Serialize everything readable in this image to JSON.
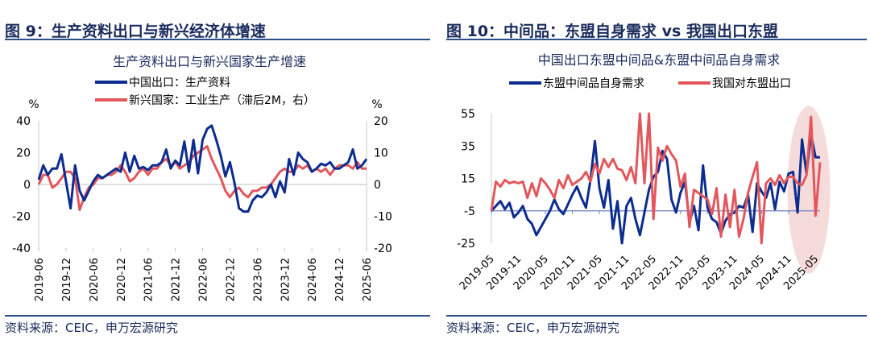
{
  "colors": {
    "navy": "#0d2c8f",
    "red": "#e3575c",
    "title": "#1a2b5c",
    "rule": "#2d4f88",
    "highlight": "#f3cfcf"
  },
  "figures": [
    {
      "fig_title": "图 9：生产资料出口与新兴经济体增速",
      "source": "资料来源：CEIC，申万宏源研究",
      "chart_data": {
        "type": "line",
        "title": "生产资料出口与新兴国家生产增速",
        "left_unit": "%",
        "right_unit": "%",
        "ylim_left": [
          -40,
          40
        ],
        "ylim_right": [
          -20,
          20
        ],
        "yticks_left": [
          "40",
          "20",
          "0",
          "-20",
          "-40"
        ],
        "yticks_right": [
          "20",
          "10",
          "0",
          "-10",
          "-20"
        ],
        "x_ticks": [
          "2019-06",
          "2019-12",
          "2020-06",
          "2020-12",
          "2021-06",
          "2021-12",
          "2022-06",
          "2022-12",
          "2023-06",
          "2023-12",
          "2024-06",
          "2024-12",
          "2025-06"
        ],
        "x_months": [
          "2019-06",
          "2019-07",
          "2019-08",
          "2019-09",
          "2019-10",
          "2019-11",
          "2019-12",
          "2020-01",
          "2020-02",
          "2020-03",
          "2020-04",
          "2020-05",
          "2020-06",
          "2020-07",
          "2020-08",
          "2020-09",
          "2020-10",
          "2020-11",
          "2020-12",
          "2021-01",
          "2021-02",
          "2021-03",
          "2021-04",
          "2021-05",
          "2021-06",
          "2021-07",
          "2021-08",
          "2021-09",
          "2021-10",
          "2021-11",
          "2021-12",
          "2022-01",
          "2022-02",
          "2022-03",
          "2022-04",
          "2022-05",
          "2022-06",
          "2022-07",
          "2022-08",
          "2022-09",
          "2022-10",
          "2022-11",
          "2022-12",
          "2023-01",
          "2023-02",
          "2023-03",
          "2023-04",
          "2023-05",
          "2023-06",
          "2023-07",
          "2023-08",
          "2023-09",
          "2023-10",
          "2023-11",
          "2023-12",
          "2024-01",
          "2024-02",
          "2024-03",
          "2024-04",
          "2024-05",
          "2024-06",
          "2024-07",
          "2024-08",
          "2024-09",
          "2024-10",
          "2024-11",
          "2024-12",
          "2025-01",
          "2025-02",
          "2025-03",
          "2025-04",
          "2025-05",
          "2025-06"
        ],
        "series": [
          {
            "name": "中国出口：生产资料",
            "axis": "left",
            "color": "#0d2c8f",
            "values": [
              3,
              12,
              6,
              10,
              10,
              19,
              2,
              -15,
              12,
              -4,
              -10,
              -4,
              2,
              6,
              4,
              6,
              8,
              10,
              8,
              20,
              8,
              18,
              10,
              11,
              9,
              12,
              12,
              14,
              22,
              10,
              15,
              12,
              27,
              8,
              28,
              7,
              28,
              35,
              37,
              28,
              18,
              5,
              14,
              1,
              -15,
              -17,
              -17,
              -10,
              -7,
              -8,
              -5,
              0,
              -8,
              2,
              -5,
              16,
              6,
              20,
              16,
              14,
              8,
              10,
              13,
              12,
              14,
              10,
              10,
              12,
              14,
              22,
              10,
              12,
              16
            ]
          },
          {
            "name": "新兴国家：工业生产（滞后2M，右）",
            "axis": "right",
            "color": "#e3575c",
            "values": [
              0,
              3,
              3,
              -1,
              0,
              2,
              4,
              4,
              2,
              -8,
              -4,
              -1,
              0,
              2,
              2,
              3,
              3,
              4,
              6,
              4,
              1,
              2,
              4,
              5,
              3,
              5,
              5,
              7,
              8,
              6,
              7,
              5,
              6,
              7,
              9,
              10,
              11,
              12,
              8,
              5,
              2,
              -2,
              -4,
              -2,
              -1,
              -3,
              -4,
              -2,
              -2,
              -1,
              -1,
              0,
              2,
              4,
              5,
              4,
              4,
              6,
              5,
              6,
              4,
              5,
              4,
              5,
              3,
              5,
              6,
              6,
              6,
              5,
              7,
              5,
              5
            ]
          }
        ]
      }
    },
    {
      "fig_title": "图 10：中间品：东盟自身需求 vs 我国出口东盟",
      "source": "资料来源：CEIC，申万宏源研究",
      "chart_data": {
        "type": "line",
        "title": "中国出口东盟中间品&东盟中间品自身需求",
        "ylim": [
          -25,
          55
        ],
        "yticks": [
          "55",
          "35",
          "15",
          "-5",
          "-25"
        ],
        "x_ticks": [
          "2019-05",
          "2019-11",
          "2020-05",
          "2020-11",
          "2021-05",
          "2021-11",
          "2022-05",
          "2022-11",
          "2023-05",
          "2023-11",
          "2024-05",
          "2024-11",
          "2025-05"
        ],
        "x_months": [
          "2019-05",
          "2019-06",
          "2019-07",
          "2019-08",
          "2019-09",
          "2019-10",
          "2019-11",
          "2019-12",
          "2020-01",
          "2020-02",
          "2020-03",
          "2020-04",
          "2020-05",
          "2020-06",
          "2020-07",
          "2020-08",
          "2020-09",
          "2020-10",
          "2020-11",
          "2020-12",
          "2021-01",
          "2021-02",
          "2021-03",
          "2021-04",
          "2021-05",
          "2021-06",
          "2021-07",
          "2021-08",
          "2021-09",
          "2021-10",
          "2021-11",
          "2021-12",
          "2022-01",
          "2022-02",
          "2022-03",
          "2022-04",
          "2022-05",
          "2022-06",
          "2022-07",
          "2022-08",
          "2022-09",
          "2022-10",
          "2022-11",
          "2022-12",
          "2023-01",
          "2023-02",
          "2023-03",
          "2023-04",
          "2023-05",
          "2023-06",
          "2023-07",
          "2023-08",
          "2023-09",
          "2023-10",
          "2023-11",
          "2023-12",
          "2024-01",
          "2024-02",
          "2024-03",
          "2024-04",
          "2024-05",
          "2024-06",
          "2024-07",
          "2024-08",
          "2024-09",
          "2024-10",
          "2024-11",
          "2024-12",
          "2025-01",
          "2025-02",
          "2025-03",
          "2025-04",
          "2025-05",
          "2025-06"
        ],
        "series": [
          {
            "name": "东盟中间品自身需求",
            "color": "#0d2c8f",
            "values": [
              -5,
              -2,
              1,
              -4,
              0,
              -9,
              -6,
              -2,
              -10,
              -13,
              -20,
              -15,
              -10,
              -5,
              2,
              -4,
              -7,
              -1,
              5,
              10,
              3,
              -3,
              14,
              38,
              9,
              -3,
              14,
              -16,
              1,
              -27,
              -2,
              3,
              -10,
              -20,
              -6,
              8,
              16,
              19,
              32,
              27,
              2,
              -6,
              6,
              13,
              -12,
              -2,
              -17,
              23,
              -3,
              -10,
              -12,
              -19,
              -11,
              -7,
              -6,
              -2,
              -3,
              5,
              -18,
              12,
              7,
              3,
              12,
              -4,
              13,
              7,
              18,
              19,
              -6,
              39,
              18,
              42,
              28,
              28
            ]
          },
          {
            "name": "我国对东盟出口",
            "color": "#e3575c",
            "values": [
              -5,
              13,
              10,
              14,
              12,
              13,
              12,
              13,
              3,
              12,
              4,
              15,
              12,
              8,
              3,
              14,
              9,
              17,
              11,
              13,
              15,
              19,
              13,
              24,
              18,
              27,
              22,
              27,
              21,
              20,
              14,
              22,
              12,
              56,
              12,
              56,
              -10,
              34,
              26,
              35,
              30,
              26,
              10,
              18,
              -15,
              8,
              6,
              4,
              2,
              -7,
              9,
              -21,
              5,
              -15,
              8,
              -21,
              -10,
              6,
              16,
              25,
              -25,
              12,
              15,
              11,
              17,
              12,
              16,
              16,
              12,
              11,
              17,
              53,
              -8,
              25
            ]
          }
        ],
        "highlight_range": [
          "2025-02",
          "2025-05"
        ]
      }
    }
  ]
}
